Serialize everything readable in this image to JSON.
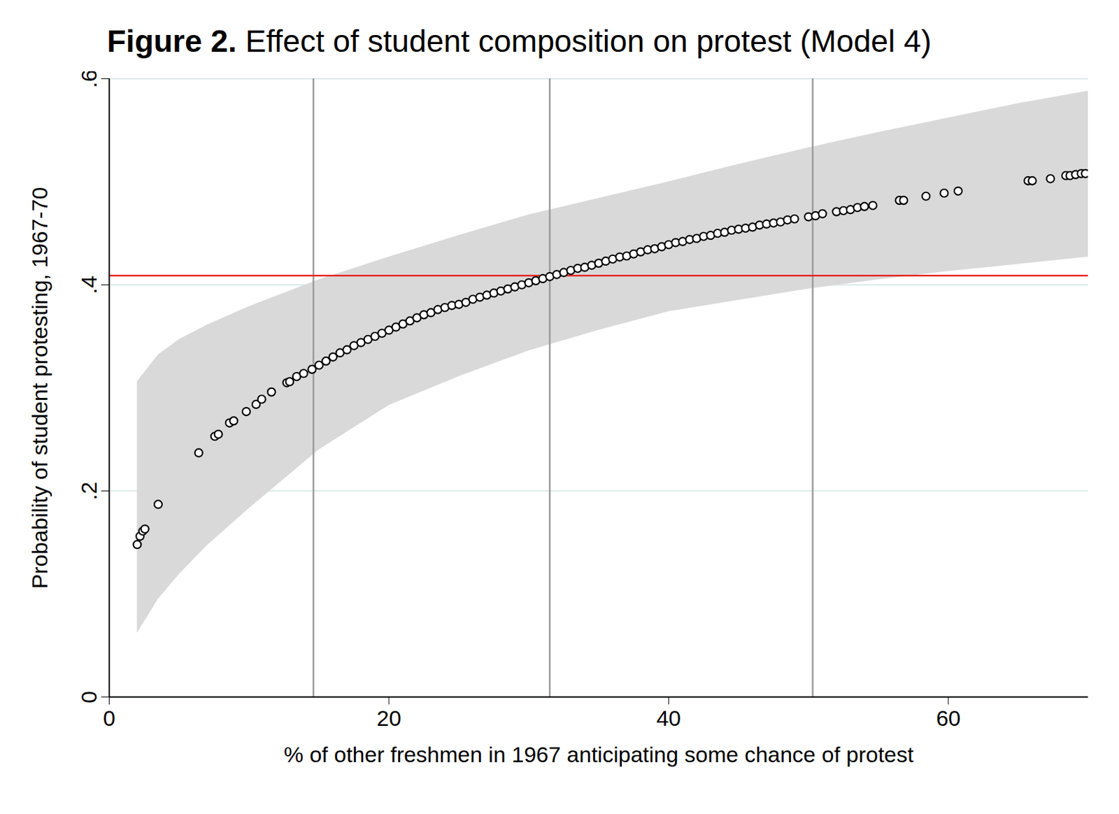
{
  "chart_data": {
    "type": "scatter",
    "title": "Figure 2. Effect of student composition on protest (Model 4)",
    "x_label": "% of other freshmen in 1967 anticipating some chance of protest",
    "y_label": "Probability of student protesting, 1967-70",
    "marker": "circle",
    "grid": true,
    "xlim": [
      0,
      70
    ],
    "xticks": [
      0,
      20,
      40,
      60
    ],
    "ylim": [
      0,
      0.6
    ],
    "yticks": [
      {
        "value": 0,
        "label": "0"
      },
      {
        "value": 0.2,
        "label": ".2"
      },
      {
        "value": 0.4,
        "label": ".4"
      },
      {
        "value": 0.6,
        "label": ".6"
      }
    ],
    "x": [
      2.0,
      2.2,
      2.4,
      2.55,
      3.5,
      6.4,
      7.55,
      7.8,
      8.6,
      8.9,
      9.8,
      10.5,
      10.9,
      11.6,
      12.7,
      12.9,
      13.4,
      13.9,
      14.5,
      15,
      15.5,
      16,
      16.5,
      17,
      17.5,
      18,
      18.5,
      19,
      19.5,
      20,
      20.5,
      21,
      21.5,
      22,
      22.5,
      23,
      23.5,
      24,
      24.5,
      25,
      25.5,
      26,
      26.5,
      27,
      27.5,
      28,
      28.5,
      29,
      29.5,
      30,
      30.5,
      31,
      31.5,
      32,
      32.5,
      33,
      33.5,
      34,
      34.5,
      35,
      35.5,
      36,
      36.5,
      37,
      37.5,
      38,
      38.5,
      39,
      39.5,
      40,
      40.5,
      41,
      41.5,
      42,
      42.5,
      43,
      43.5,
      44,
      44.5,
      45,
      45.5,
      46,
      46.5,
      47,
      47.5,
      48,
      48.5,
      49,
      50,
      50.5,
      51,
      52,
      52.5,
      53,
      53.5,
      54,
      54.6,
      56.5,
      56.8,
      58.4,
      59.7,
      60.7,
      65.7,
      66.0,
      67.3,
      68.4,
      68.7,
      69.1,
      69.5,
      69.8
    ],
    "values": [
      0.148,
      0.156,
      0.161,
      0.163,
      0.187,
      0.237,
      0.253,
      0.255,
      0.266,
      0.268,
      0.277,
      0.284,
      0.289,
      0.296,
      0.305,
      0.306,
      0.311,
      0.314,
      0.318,
      0.322,
      0.326,
      0.33,
      0.334,
      0.337,
      0.341,
      0.344,
      0.347,
      0.35,
      0.353,
      0.356,
      0.359,
      0.362,
      0.365,
      0.368,
      0.371,
      0.373,
      0.376,
      0.378,
      0.38,
      0.381,
      0.383,
      0.386,
      0.388,
      0.39,
      0.392,
      0.394,
      0.396,
      0.398,
      0.4,
      0.402,
      0.404,
      0.406,
      0.408,
      0.41,
      0.412,
      0.414,
      0.416,
      0.417,
      0.419,
      0.421,
      0.423,
      0.425,
      0.427,
      0.428,
      0.43,
      0.432,
      0.434,
      0.435,
      0.437,
      0.439,
      0.441,
      0.442,
      0.444,
      0.445,
      0.447,
      0.448,
      0.45,
      0.451,
      0.453,
      0.454,
      0.455,
      0.456,
      0.458,
      0.459,
      0.46,
      0.461,
      0.463,
      0.464,
      0.466,
      0.467,
      0.469,
      0.471,
      0.472,
      0.473,
      0.475,
      0.476,
      0.477,
      0.482,
      0.482,
      0.486,
      0.489,
      0.491,
      0.501,
      0.501,
      0.503,
      0.506,
      0.506,
      0.507,
      0.508,
      0.508
    ],
    "band": {
      "x": [
        2,
        3.5,
        5,
        7,
        10,
        15,
        20,
        25,
        30,
        35,
        40,
        45,
        50,
        55,
        60,
        65,
        70
      ],
      "lower": [
        0.062,
        0.095,
        0.119,
        0.147,
        0.183,
        0.24,
        0.283,
        0.311,
        0.336,
        0.356,
        0.374,
        0.385,
        0.396,
        0.405,
        0.413,
        0.42,
        0.427
      ],
      "upper": [
        0.306,
        0.332,
        0.347,
        0.361,
        0.379,
        0.405,
        0.427,
        0.448,
        0.468,
        0.484,
        0.5,
        0.517,
        0.533,
        0.548,
        0.562,
        0.576,
        0.588
      ]
    },
    "reference_lines": {
      "x": [
        14.6,
        31.5,
        50.3
      ],
      "y": [
        0.409
      ]
    }
  }
}
